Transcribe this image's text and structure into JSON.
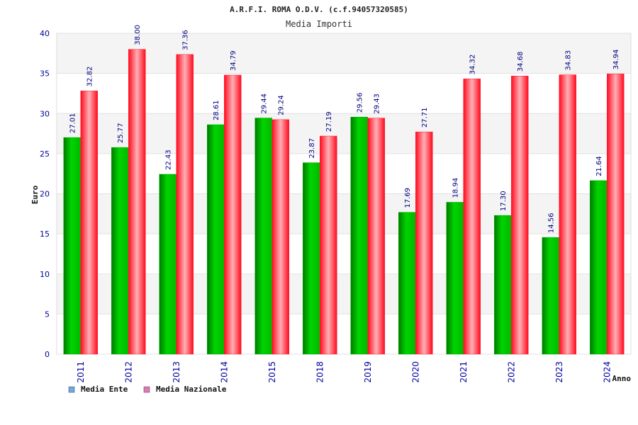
{
  "colors": {
    "ente": "#00b000",
    "nazionale": "#ff1f2f",
    "legend_ente": "#6fa8e6",
    "legend_nazionale": "#e07ab2",
    "band_a": "#f4f4f4",
    "band_b": "#ffffff",
    "tick_text": "#0000a0"
  },
  "chart_data": {
    "type": "bar",
    "title": "A.R.F.I. ROMA O.D.V. (c.f.94057320585)",
    "subtitle": "Media Importi",
    "xlabel": "Anno",
    "ylabel": "Euro",
    "ylim": [
      0,
      40
    ],
    "yticks": [
      "0",
      "5",
      "10",
      "15",
      "20",
      "25",
      "30",
      "35",
      "40"
    ],
    "grid": true,
    "legend_position": "bottom-left",
    "categories": [
      "2011",
      "2012",
      "2013",
      "2014",
      "2015",
      "2018",
      "2019",
      "2020",
      "2021",
      "2022",
      "2023",
      "2024"
    ],
    "series": [
      {
        "name": "Media Ente",
        "values": [
          27.01,
          25.77,
          22.43,
          28.61,
          29.44,
          23.87,
          29.56,
          17.69,
          18.94,
          17.3,
          14.56,
          21.64
        ],
        "labels": [
          "27.01",
          "25.77",
          "22.43",
          "28.61",
          "29.44",
          "23.87",
          "29.56",
          "17.69",
          "18.94",
          "17.30",
          "14.56",
          "21.64"
        ]
      },
      {
        "name": "Media Nazionale",
        "values": [
          32.82,
          38.0,
          37.36,
          34.79,
          29.24,
          27.19,
          29.43,
          27.71,
          34.32,
          34.68,
          34.83,
          34.94
        ],
        "labels": [
          "32.82",
          "38.00",
          "37.36",
          "34.79",
          "29.24",
          "27.19",
          "29.43",
          "27.71",
          "34.32",
          "34.68",
          "34.83",
          "34.94"
        ]
      }
    ]
  }
}
